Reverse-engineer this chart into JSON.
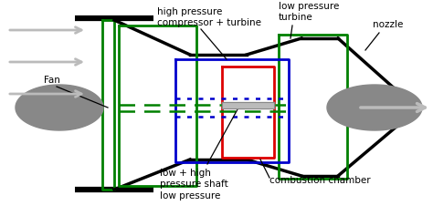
{
  "figsize": [
    4.74,
    2.37
  ],
  "dpi": 100,
  "bg_color": "#ffffff",
  "colors": {
    "green": "#008000",
    "blue": "#0000cc",
    "red": "#dd0000",
    "black": "#000000",
    "gray": "#888888",
    "light_gray": "#bbbbbb",
    "mid_gray": "#999999"
  },
  "labels": {
    "fan": "Fan",
    "high_pressure": "high pressure\ncompressor + turbine",
    "low_pressure_turbine": "low pressure\nturbine",
    "nozzle": "nozzle",
    "low_high_shaft": "low + high\npressure shaft",
    "low_pressure": "low pressure",
    "combustion_chamber": "combustion chamber"
  }
}
